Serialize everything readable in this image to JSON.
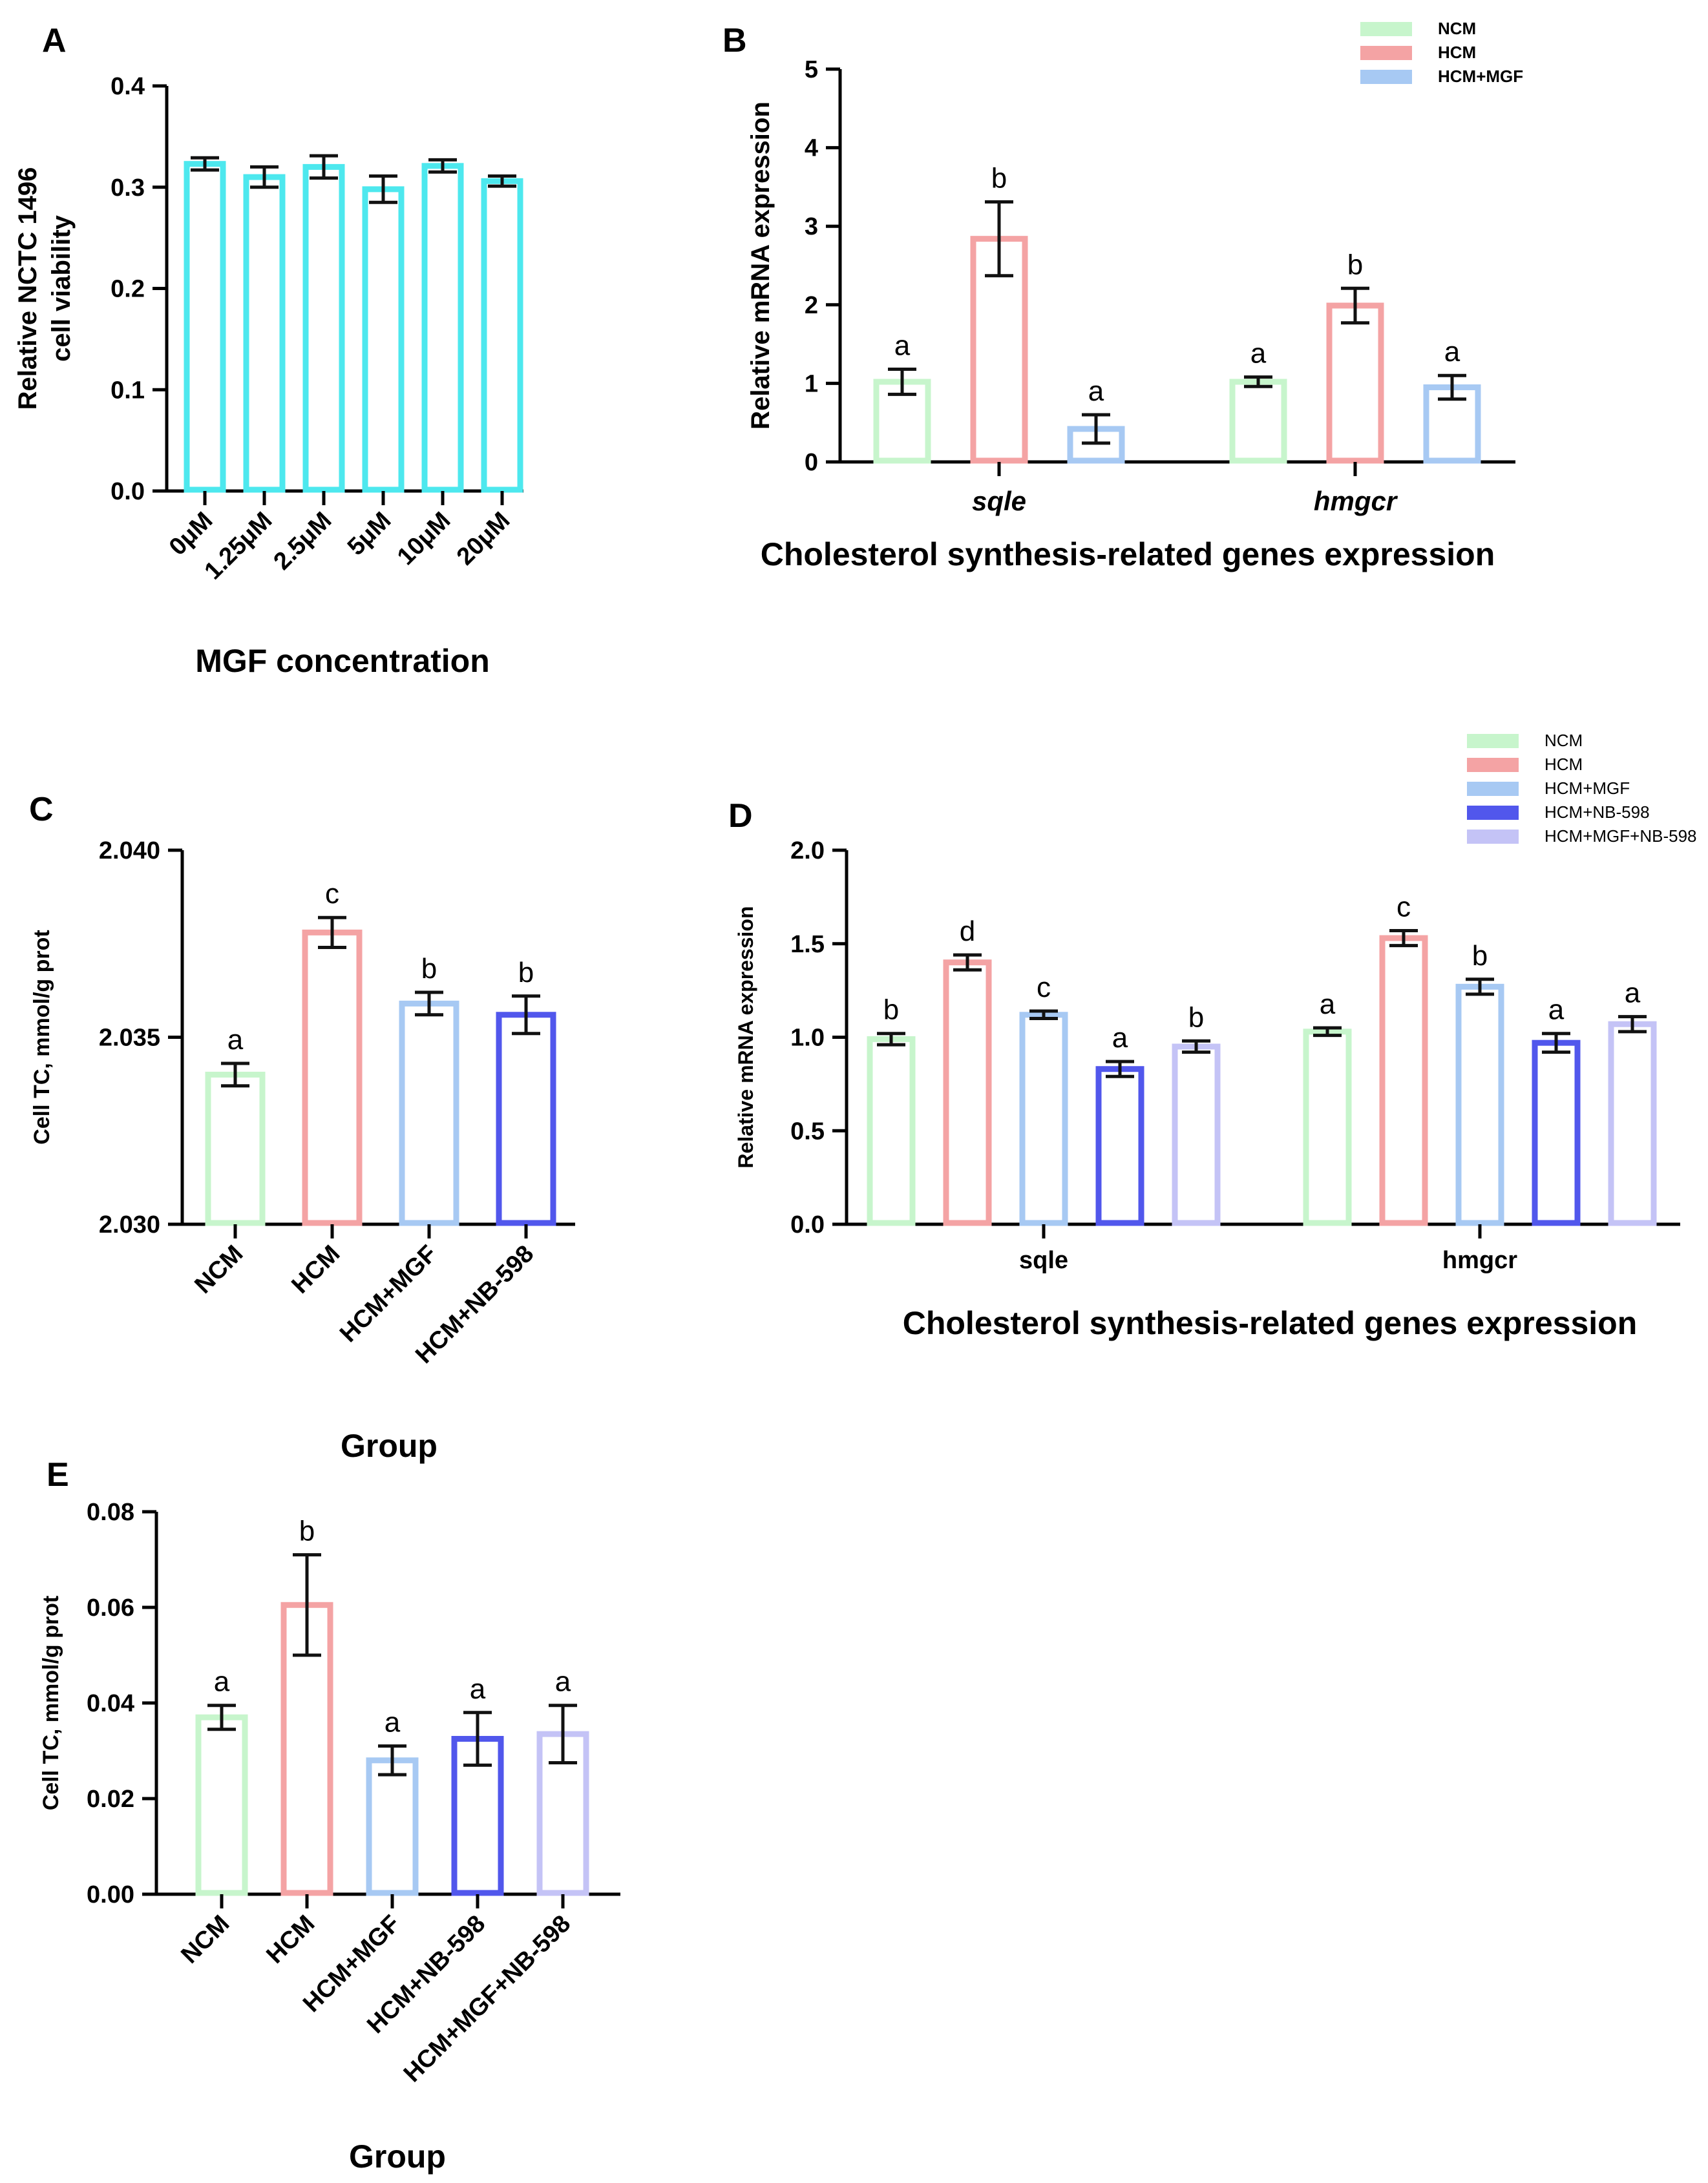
{
  "colors": {
    "cyan": "#4de8ee",
    "green": "#c7f5cc",
    "pink": "#f4a3a4",
    "lightblue": "#a7c9f3",
    "blue": "#5157ec",
    "lavender": "#c4c3f6",
    "axis": "#000000",
    "err": "#111111"
  },
  "chart_data": [
    {
      "id": "A",
      "panel_label": "A",
      "type": "bar",
      "title": "",
      "xlabel": "MGF concentration",
      "ylabel": [
        "Relative NCTC 1496",
        "cell viability"
      ],
      "ylim": [
        0,
        0.4
      ],
      "yticks": [
        "0.0",
        "0.1",
        "0.2",
        "0.3",
        "0.4"
      ],
      "ytick_values": [
        0,
        0.1,
        0.2,
        0.3,
        0.4
      ],
      "categories": [
        "0μM",
        "1.25μM",
        "2.5μM",
        "5μM",
        "10μM",
        "20μM"
      ],
      "values": [
        0.323,
        0.31,
        0.32,
        0.298,
        0.321,
        0.306
      ],
      "errors": [
        0.006,
        0.01,
        0.011,
        0.013,
        0.006,
        0.005
      ],
      "bar_color": "cyan"
    },
    {
      "id": "B",
      "panel_label": "B",
      "type": "bar",
      "title": "",
      "xlabel": "Cholesterol synthesis-related genes expression",
      "ylabel": [
        "Relative mRNA expression"
      ],
      "ylim": [
        0,
        5
      ],
      "yticks": [
        "0",
        "1",
        "2",
        "3",
        "4",
        "5"
      ],
      "ytick_values": [
        0,
        1,
        2,
        3,
        4,
        5
      ],
      "categories": [
        "sqle",
        "hmgcr"
      ],
      "legend": [
        "NCM",
        "HCM",
        "HCM+MGF"
      ],
      "series": [
        {
          "name": "NCM",
          "color": "green",
          "values": [
            1.02,
            1.02
          ],
          "errors": [
            0.16,
            0.06
          ],
          "sig": [
            "a",
            "a"
          ]
        },
        {
          "name": "HCM",
          "color": "pink",
          "values": [
            2.84,
            1.99
          ],
          "errors": [
            0.47,
            0.22
          ],
          "sig": [
            "b",
            "b"
          ]
        },
        {
          "name": "HCM+MGF",
          "color": "lightblue",
          "values": [
            0.42,
            0.95
          ],
          "errors": [
            0.18,
            0.15
          ],
          "sig": [
            "a",
            "a"
          ]
        }
      ]
    },
    {
      "id": "C",
      "panel_label": "C",
      "type": "bar",
      "title": "",
      "xlabel": "Group",
      "ylabel": [
        "Cell TC, mmol/g prot"
      ],
      "ylim": [
        2.03,
        2.04
      ],
      "yticks": [
        "2.030",
        "2.035",
        "2.040"
      ],
      "ytick_values": [
        2.03,
        2.035,
        2.04
      ],
      "categories": [
        "NCM",
        "HCM",
        "HCM+MGF",
        "HCM+NB-598"
      ],
      "values": [
        2.034,
        2.0378,
        2.0359,
        2.0356
      ],
      "errors": [
        0.0003,
        0.0004,
        0.0003,
        0.0005
      ],
      "sig": [
        "a",
        "c",
        "b",
        "b"
      ],
      "colors": [
        "green",
        "pink",
        "lightblue",
        "blue"
      ]
    },
    {
      "id": "D",
      "panel_label": "D",
      "type": "bar",
      "title": "",
      "xlabel": "Cholesterol synthesis-related genes expression",
      "ylabel": [
        "Relative mRNA expression"
      ],
      "ylim": [
        0,
        2.0
      ],
      "yticks": [
        "0.0",
        "0.5",
        "1.0",
        "1.5",
        "2.0"
      ],
      "ytick_values": [
        0,
        0.5,
        1.0,
        1.5,
        2.0
      ],
      "categories": [
        "sqle",
        "hmgcr"
      ],
      "legend": [
        "NCM",
        "HCM",
        "HCM+MGF",
        "HCM+NB-598",
        "HCM+MGF+NB-598"
      ],
      "series": [
        {
          "name": "NCM",
          "color": "green",
          "values": [
            0.99,
            1.03
          ],
          "errors": [
            0.03,
            0.02
          ],
          "sig": [
            "b",
            "a"
          ]
        },
        {
          "name": "HCM",
          "color": "pink",
          "values": [
            1.4,
            1.53
          ],
          "errors": [
            0.04,
            0.04
          ],
          "sig": [
            "d",
            "c"
          ]
        },
        {
          "name": "HCM+MGF",
          "color": "lightblue",
          "values": [
            1.12,
            1.27
          ],
          "errors": [
            0.02,
            0.04
          ],
          "sig": [
            "c",
            "b"
          ]
        },
        {
          "name": "HCM+NB-598",
          "color": "blue",
          "values": [
            0.83,
            0.97
          ],
          "errors": [
            0.04,
            0.05
          ],
          "sig": [
            "a",
            "a"
          ]
        },
        {
          "name": "HCM+MGF+NB-598",
          "color": "lavender",
          "values": [
            0.95,
            1.07
          ],
          "errors": [
            0.03,
            0.04
          ],
          "sig": [
            "b",
            "a"
          ]
        }
      ]
    },
    {
      "id": "E",
      "panel_label": "E",
      "type": "bar",
      "title": "",
      "xlabel": "Group",
      "ylabel": [
        "Cell TC, mmol/g prot"
      ],
      "ylim": [
        0,
        0.08
      ],
      "yticks": [
        "0.00",
        "0.02",
        "0.04",
        "0.06",
        "0.08"
      ],
      "ytick_values": [
        0,
        0.02,
        0.04,
        0.06,
        0.08
      ],
      "categories": [
        "NCM",
        "HCM",
        "HCM+MGF",
        "HCM+NB-598",
        "HCM+MGF+NB-598"
      ],
      "values": [
        0.037,
        0.0605,
        0.028,
        0.0325,
        0.0335
      ],
      "errors": [
        0.0025,
        0.0105,
        0.003,
        0.0055,
        0.006
      ],
      "sig": [
        "a",
        "b",
        "a",
        "a",
        "a"
      ],
      "colors": [
        "green",
        "pink",
        "lightblue",
        "blue",
        "lavender"
      ]
    }
  ]
}
